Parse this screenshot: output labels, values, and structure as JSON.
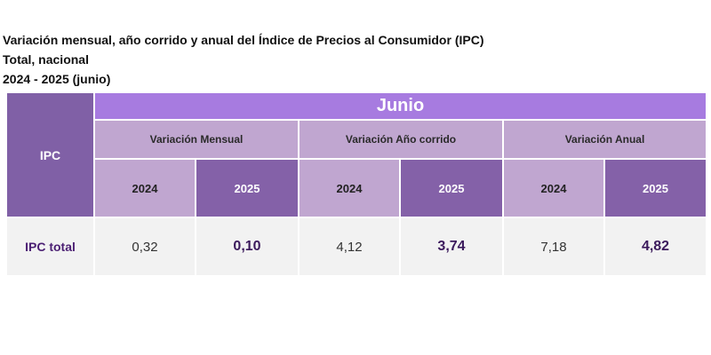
{
  "title": {
    "line1": "Variación mensual, año corrido y anual del Índice de Precios al Consumidor (IPC)",
    "line2": "Total, nacional",
    "line3": "2024 - 2025 (junio)"
  },
  "table": {
    "corner_label": "IPC",
    "month": "Junio",
    "groups": {
      "mensual": "Variación Mensual",
      "anio_corrido": "Variación Año corrido",
      "anual": "Variación Anual"
    },
    "years": {
      "mensual_2024": "2024",
      "mensual_2025": "2025",
      "corrido_2024": "2024",
      "corrido_2025": "2025",
      "anual_2024": "2024",
      "anual_2025": "2025"
    },
    "row": {
      "label": "IPC total",
      "mensual_2024": "0,32",
      "mensual_2025": "0,10",
      "corrido_2024": "4,12",
      "corrido_2025": "3,74",
      "anual_2024": "7,18",
      "anual_2025": "4,82"
    }
  },
  "colors": {
    "header_purple_dark": "#8060a6",
    "header_purple_bright": "#a77be0",
    "header_lavender": "#c0a6d0",
    "data_row_bg": "#f2f2f2"
  }
}
